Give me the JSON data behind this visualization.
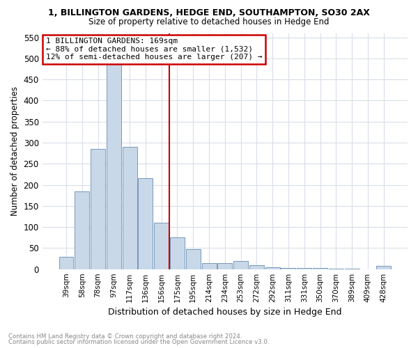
{
  "title": "1, BILLINGTON GARDENS, HEDGE END, SOUTHAMPTON, SO30 2AX",
  "subtitle": "Size of property relative to detached houses in Hedge End",
  "xlabel": "Distribution of detached houses by size in Hedge End",
  "ylabel": "Number of detached properties",
  "footnote1": "Contains HM Land Registry data © Crown copyright and database right 2024.",
  "footnote2": "Contains public sector information licensed under the Open Government Licence v3.0.",
  "annotation_line1": "1 BILLINGTON GARDENS: 169sqm",
  "annotation_line2": "← 88% of detached houses are smaller (1,532)",
  "annotation_line3": "12% of semi-detached houses are larger (207) →",
  "bar_color": "#c8d8e8",
  "bar_edge_color": "#7799bb",
  "vline_color": "#cc0000",
  "annotation_box_color": "#cc0000",
  "categories": [
    "39sqm",
    "58sqm",
    "78sqm",
    "97sqm",
    "117sqm",
    "136sqm",
    "156sqm",
    "175sqm",
    "195sqm",
    "214sqm",
    "234sqm",
    "253sqm",
    "272sqm",
    "292sqm",
    "311sqm",
    "331sqm",
    "350sqm",
    "370sqm",
    "389sqm",
    "409sqm",
    "428sqm"
  ],
  "values": [
    30,
    185,
    285,
    510,
    290,
    215,
    110,
    75,
    47,
    15,
    15,
    20,
    10,
    5,
    3,
    2,
    2,
    1,
    1,
    0,
    8
  ],
  "ylim": [
    0,
    560
  ],
  "yticks": [
    0,
    50,
    100,
    150,
    200,
    250,
    300,
    350,
    400,
    450,
    500,
    550
  ],
  "vline_x_index": 6.5,
  "background_color": "#ffffff",
  "grid_color": "#d8dde8"
}
